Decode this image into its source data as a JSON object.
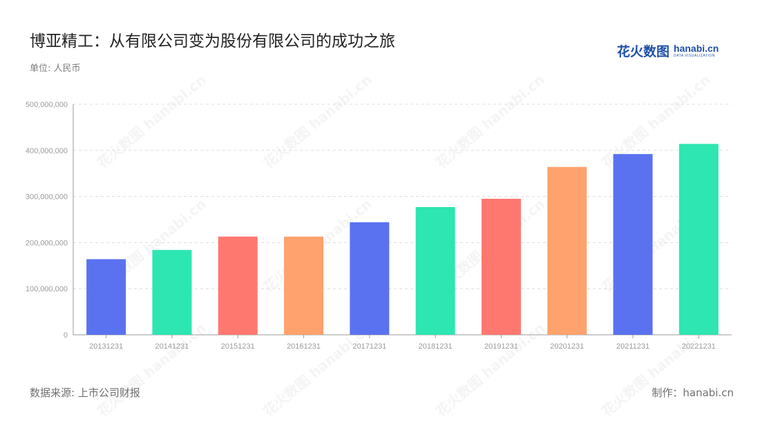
{
  "title": "博亚精工：从有限公司变为股份有限公司的成功之旅",
  "unit_label": "单位: 人民币",
  "logo": {
    "cn": "花火数图",
    "en": "hanabi.cn",
    "sub": "DATA VISUALIZATION",
    "brand_color": "#1e4fa8"
  },
  "watermark_text": "花火数图 hanabi.cn",
  "footer": {
    "source": "数据来源: 上市公司财报",
    "credit": "制作：hanabi.cn"
  },
  "chart_data": {
    "type": "bar",
    "title": "",
    "xlabel": "",
    "ylabel": "",
    "categories": [
      "20131231",
      "20141231",
      "20151231",
      "20161231",
      "20171231",
      "20181231",
      "20191231",
      "20201231",
      "20211231",
      "20221231"
    ],
    "values": [
      164000000,
      184000000,
      213000000,
      213000000,
      244000000,
      277000000,
      295000000,
      364000000,
      392000000,
      414000000
    ],
    "ylim": [
      0,
      500000000
    ],
    "yticks": [
      0,
      100000000,
      200000000,
      300000000,
      400000000,
      500000000
    ],
    "ytick_labels": [
      "0",
      "100,000,000",
      "200,000,000",
      "300,000,000",
      "400,000,000",
      "500,000,000"
    ],
    "grid": true,
    "bar_colors": [
      "#5a72f0",
      "#2ee6b1",
      "#ff7870",
      "#ffa26e",
      "#5a72f0",
      "#2ee6b1",
      "#ff7870",
      "#ffa26e",
      "#5a72f0",
      "#2ee6b1"
    ],
    "axis_color": "#999999",
    "grid_color": "#dcdcdc",
    "tick_label_color": "#9a9a9a"
  }
}
